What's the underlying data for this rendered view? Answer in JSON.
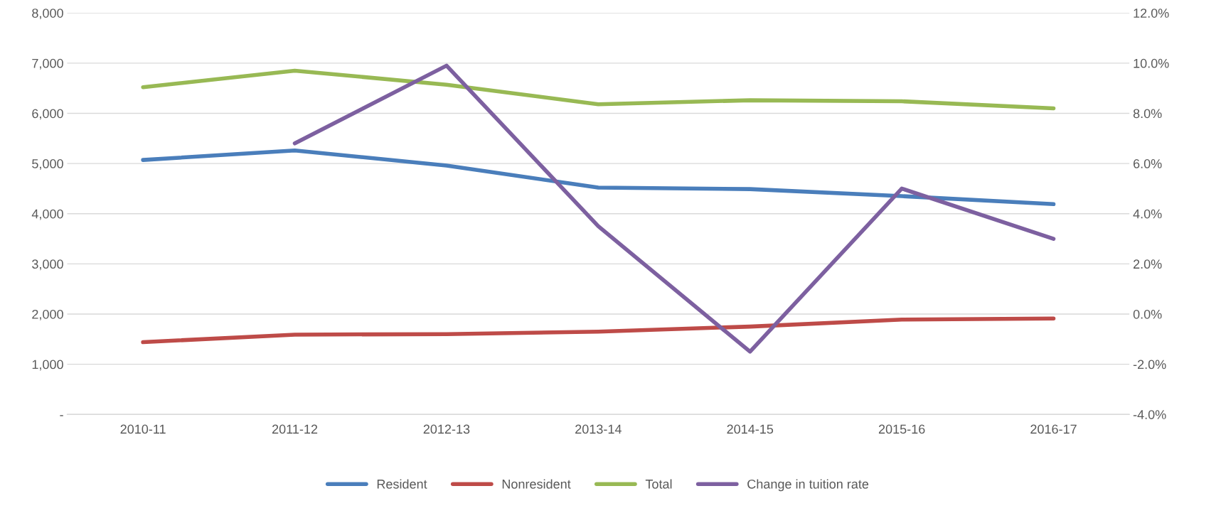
{
  "chart_data": {
    "type": "line",
    "categories": [
      "2010-11",
      "2011-12",
      "2012-13",
      "2013-14",
      "2014-15",
      "2015-16",
      "2016-17"
    ],
    "series": [
      {
        "name": "Resident",
        "color": "#4a7ebb",
        "values": [
          5070,
          5260,
          4960,
          4520,
          4490,
          4350,
          4190
        ]
      },
      {
        "name": "Nonresident",
        "color": "#be4b48",
        "values": [
          1440,
          1590,
          1600,
          1650,
          1750,
          1890,
          1910
        ]
      },
      {
        "name": "Total",
        "color": "#98b954",
        "values": [
          6520,
          6850,
          6570,
          6180,
          6260,
          6240,
          6100
        ]
      },
      {
        "name": "Change in tuition rate",
        "color": "#7d60a0",
        "axis": "y2",
        "values": [
          null,
          6.8,
          9.9,
          3.5,
          -1.5,
          5.0,
          3.0
        ]
      }
    ],
    "ylim": [
      0,
      8000
    ],
    "yticks": [
      {
        "value": 0,
        "label": "-"
      },
      {
        "value": 1000,
        "label": "1,000"
      },
      {
        "value": 2000,
        "label": "2,000"
      },
      {
        "value": 3000,
        "label": "3,000"
      },
      {
        "value": 4000,
        "label": "4,000"
      },
      {
        "value": 5000,
        "label": "5,000"
      },
      {
        "value": 6000,
        "label": "6,000"
      },
      {
        "value": 7000,
        "label": "7,000"
      },
      {
        "value": 8000,
        "label": "8,000"
      }
    ],
    "y2lim": [
      -4,
      12
    ],
    "y2ticks": [
      {
        "value": -4,
        "label": "-4.0%"
      },
      {
        "value": -2,
        "label": "-2.0%"
      },
      {
        "value": 0,
        "label": "0.0%"
      },
      {
        "value": 2,
        "label": "2.0%"
      },
      {
        "value": 4,
        "label": "4.0%"
      },
      {
        "value": 6,
        "label": "6.0%"
      },
      {
        "value": 8,
        "label": "8.0%"
      },
      {
        "value": 10,
        "label": "10.0%"
      },
      {
        "value": 12,
        "label": "12.0%"
      }
    ],
    "grid": "y",
    "legend": "bottom",
    "marker": "none",
    "line_style": "solid"
  }
}
